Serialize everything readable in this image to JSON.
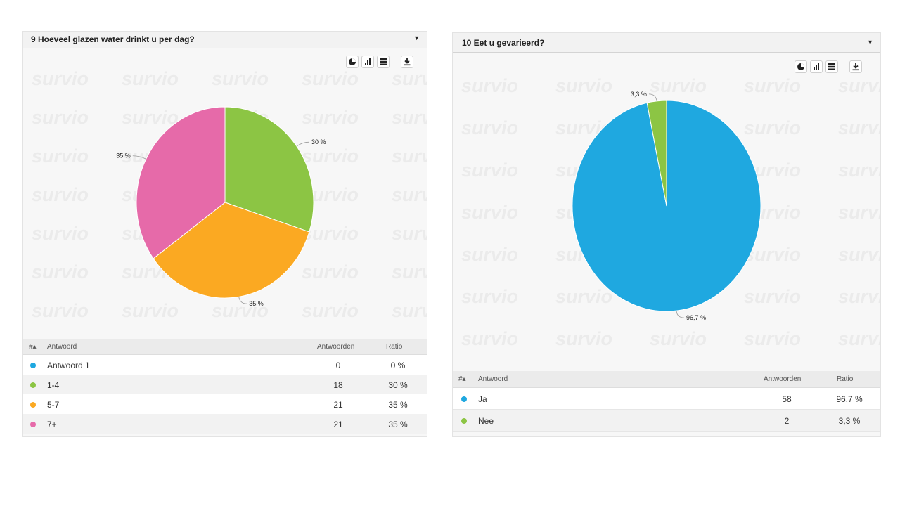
{
  "panels": [
    {
      "title": "9 Hoeveel glazen water drinkt u per dag?",
      "table": {
        "col_num": "#▴",
        "col_answer": "Antwoord",
        "col_count": "Antwoorden",
        "col_ratio": "Ratio",
        "rows": [
          {
            "label": "Antwoord 1",
            "count": "0",
            "ratio": "0 %",
            "color": "#1fa8e0"
          },
          {
            "label": "1-4",
            "count": "18",
            "ratio": "30 %",
            "color": "#8cc544"
          },
          {
            "label": "5-7",
            "count": "21",
            "ratio": "35 %",
            "color": "#fba922"
          },
          {
            "label": "7+",
            "count": "21",
            "ratio": "35 %",
            "color": "#e66aa9"
          }
        ]
      }
    },
    {
      "title": "10 Eet u gevarieerd?",
      "table": {
        "col_num": "#▴",
        "col_answer": "Antwoord",
        "col_count": "Antwoorden",
        "col_ratio": "Ratio",
        "rows": [
          {
            "label": "Ja",
            "count": "58",
            "ratio": "96,7 %",
            "color": "#1fa8e0"
          },
          {
            "label": "Nee",
            "count": "2",
            "ratio": "3,3 %",
            "color": "#8cc544"
          }
        ]
      }
    }
  ],
  "watermark_text": "survio",
  "icons": [
    "pie-chart-icon",
    "bar-chart-icon",
    "table-icon",
    "download-icon",
    "chevron-down-icon"
  ],
  "chart_data": [
    {
      "type": "pie",
      "title": "9 Hoeveel glazen water drinkt u per dag?",
      "categories": [
        "Antwoord 1",
        "1-4",
        "5-7",
        "7+"
      ],
      "values": [
        0,
        18,
        21,
        21
      ],
      "labels": [
        "0 %",
        "30 %",
        "35 %",
        "35 %"
      ],
      "colors": [
        "#1fa8e0",
        "#8cc544",
        "#fba922",
        "#e66aa9"
      ]
    },
    {
      "type": "pie",
      "title": "10 Eet u gevarieerd?",
      "categories": [
        "Ja",
        "Nee"
      ],
      "values": [
        58,
        2
      ],
      "labels": [
        "96,7 %",
        "3,3 %"
      ],
      "colors": [
        "#1fa8e0",
        "#8cc544"
      ]
    }
  ]
}
